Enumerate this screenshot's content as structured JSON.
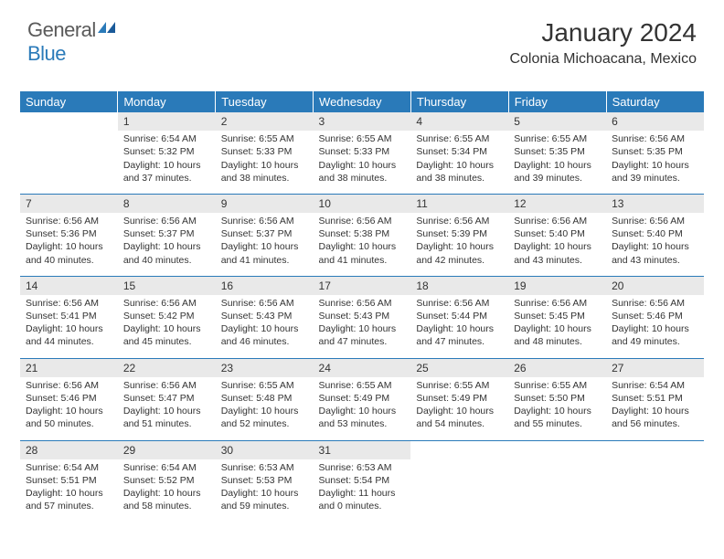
{
  "logo": {
    "text1": "General",
    "text2": "Blue"
  },
  "header": {
    "title": "January 2024",
    "location": "Colonia Michoacana, Mexico"
  },
  "colors": {
    "header_bg": "#2a7ab9",
    "header_text": "#ffffff",
    "daynum_bg": "#e9e9e9",
    "text": "#333333",
    "rule": "#2a7ab9",
    "page_bg": "#ffffff"
  },
  "weekdays": [
    "Sunday",
    "Monday",
    "Tuesday",
    "Wednesday",
    "Thursday",
    "Friday",
    "Saturday"
  ],
  "start_weekday": 1,
  "days": [
    {
      "n": "1",
      "sunrise": "Sunrise: 6:54 AM",
      "sunset": "Sunset: 5:32 PM",
      "daylight": "Daylight: 10 hours and 37 minutes."
    },
    {
      "n": "2",
      "sunrise": "Sunrise: 6:55 AM",
      "sunset": "Sunset: 5:33 PM",
      "daylight": "Daylight: 10 hours and 38 minutes."
    },
    {
      "n": "3",
      "sunrise": "Sunrise: 6:55 AM",
      "sunset": "Sunset: 5:33 PM",
      "daylight": "Daylight: 10 hours and 38 minutes."
    },
    {
      "n": "4",
      "sunrise": "Sunrise: 6:55 AM",
      "sunset": "Sunset: 5:34 PM",
      "daylight": "Daylight: 10 hours and 38 minutes."
    },
    {
      "n": "5",
      "sunrise": "Sunrise: 6:55 AM",
      "sunset": "Sunset: 5:35 PM",
      "daylight": "Daylight: 10 hours and 39 minutes."
    },
    {
      "n": "6",
      "sunrise": "Sunrise: 6:56 AM",
      "sunset": "Sunset: 5:35 PM",
      "daylight": "Daylight: 10 hours and 39 minutes."
    },
    {
      "n": "7",
      "sunrise": "Sunrise: 6:56 AM",
      "sunset": "Sunset: 5:36 PM",
      "daylight": "Daylight: 10 hours and 40 minutes."
    },
    {
      "n": "8",
      "sunrise": "Sunrise: 6:56 AM",
      "sunset": "Sunset: 5:37 PM",
      "daylight": "Daylight: 10 hours and 40 minutes."
    },
    {
      "n": "9",
      "sunrise": "Sunrise: 6:56 AM",
      "sunset": "Sunset: 5:37 PM",
      "daylight": "Daylight: 10 hours and 41 minutes."
    },
    {
      "n": "10",
      "sunrise": "Sunrise: 6:56 AM",
      "sunset": "Sunset: 5:38 PM",
      "daylight": "Daylight: 10 hours and 41 minutes."
    },
    {
      "n": "11",
      "sunrise": "Sunrise: 6:56 AM",
      "sunset": "Sunset: 5:39 PM",
      "daylight": "Daylight: 10 hours and 42 minutes."
    },
    {
      "n": "12",
      "sunrise": "Sunrise: 6:56 AM",
      "sunset": "Sunset: 5:40 PM",
      "daylight": "Daylight: 10 hours and 43 minutes."
    },
    {
      "n": "13",
      "sunrise": "Sunrise: 6:56 AM",
      "sunset": "Sunset: 5:40 PM",
      "daylight": "Daylight: 10 hours and 43 minutes."
    },
    {
      "n": "14",
      "sunrise": "Sunrise: 6:56 AM",
      "sunset": "Sunset: 5:41 PM",
      "daylight": "Daylight: 10 hours and 44 minutes."
    },
    {
      "n": "15",
      "sunrise": "Sunrise: 6:56 AM",
      "sunset": "Sunset: 5:42 PM",
      "daylight": "Daylight: 10 hours and 45 minutes."
    },
    {
      "n": "16",
      "sunrise": "Sunrise: 6:56 AM",
      "sunset": "Sunset: 5:43 PM",
      "daylight": "Daylight: 10 hours and 46 minutes."
    },
    {
      "n": "17",
      "sunrise": "Sunrise: 6:56 AM",
      "sunset": "Sunset: 5:43 PM",
      "daylight": "Daylight: 10 hours and 47 minutes."
    },
    {
      "n": "18",
      "sunrise": "Sunrise: 6:56 AM",
      "sunset": "Sunset: 5:44 PM",
      "daylight": "Daylight: 10 hours and 47 minutes."
    },
    {
      "n": "19",
      "sunrise": "Sunrise: 6:56 AM",
      "sunset": "Sunset: 5:45 PM",
      "daylight": "Daylight: 10 hours and 48 minutes."
    },
    {
      "n": "20",
      "sunrise": "Sunrise: 6:56 AM",
      "sunset": "Sunset: 5:46 PM",
      "daylight": "Daylight: 10 hours and 49 minutes."
    },
    {
      "n": "21",
      "sunrise": "Sunrise: 6:56 AM",
      "sunset": "Sunset: 5:46 PM",
      "daylight": "Daylight: 10 hours and 50 minutes."
    },
    {
      "n": "22",
      "sunrise": "Sunrise: 6:56 AM",
      "sunset": "Sunset: 5:47 PM",
      "daylight": "Daylight: 10 hours and 51 minutes."
    },
    {
      "n": "23",
      "sunrise": "Sunrise: 6:55 AM",
      "sunset": "Sunset: 5:48 PM",
      "daylight": "Daylight: 10 hours and 52 minutes."
    },
    {
      "n": "24",
      "sunrise": "Sunrise: 6:55 AM",
      "sunset": "Sunset: 5:49 PM",
      "daylight": "Daylight: 10 hours and 53 minutes."
    },
    {
      "n": "25",
      "sunrise": "Sunrise: 6:55 AM",
      "sunset": "Sunset: 5:49 PM",
      "daylight": "Daylight: 10 hours and 54 minutes."
    },
    {
      "n": "26",
      "sunrise": "Sunrise: 6:55 AM",
      "sunset": "Sunset: 5:50 PM",
      "daylight": "Daylight: 10 hours and 55 minutes."
    },
    {
      "n": "27",
      "sunrise": "Sunrise: 6:54 AM",
      "sunset": "Sunset: 5:51 PM",
      "daylight": "Daylight: 10 hours and 56 minutes."
    },
    {
      "n": "28",
      "sunrise": "Sunrise: 6:54 AM",
      "sunset": "Sunset: 5:51 PM",
      "daylight": "Daylight: 10 hours and 57 minutes."
    },
    {
      "n": "29",
      "sunrise": "Sunrise: 6:54 AM",
      "sunset": "Sunset: 5:52 PM",
      "daylight": "Daylight: 10 hours and 58 minutes."
    },
    {
      "n": "30",
      "sunrise": "Sunrise: 6:53 AM",
      "sunset": "Sunset: 5:53 PM",
      "daylight": "Daylight: 10 hours and 59 minutes."
    },
    {
      "n": "31",
      "sunrise": "Sunrise: 6:53 AM",
      "sunset": "Sunset: 5:54 PM",
      "daylight": "Daylight: 11 hours and 0 minutes."
    }
  ]
}
